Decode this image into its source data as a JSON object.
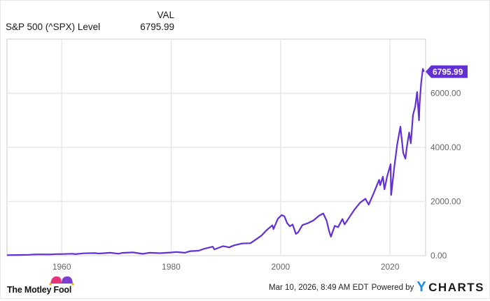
{
  "legend": {
    "column_header": "VAL",
    "series_name": "S&P 500 (^SPX) Level",
    "series_value": "6795.99"
  },
  "footer": {
    "brand": "The Motley Fool",
    "timestamp": "Mar 10, 2026, 8:49 AM EDT",
    "powered_by": "Powered by",
    "provider": "CHARTS",
    "provider_y": "Y"
  },
  "colors": {
    "line": "#6330d6",
    "grid": "#e8e8e8",
    "axis_text": "#666666",
    "label_bg": "#6330d6",
    "ycharts_blue": "#1b8ee8",
    "motley_pink": "#e8327c",
    "motley_purple": "#7b3fd0"
  },
  "chart_data": {
    "type": "line",
    "title": "S&P 500 (^SPX) Level",
    "xlabel": "",
    "ylabel": "",
    "xlim": [
      1950,
      2026.5
    ],
    "ylim": [
      0,
      8000
    ],
    "x_ticks": [
      1960,
      1980,
      2000,
      2020
    ],
    "x_tick_labels": [
      "1960",
      "1980",
      "2000",
      "2020"
    ],
    "y_ticks": [
      0,
      2000,
      4000,
      6000
    ],
    "y_tick_labels": [
      "0.00",
      "2000.00",
      "4000.00",
      "6000.00"
    ],
    "grid": true,
    "legend_position": "top-left",
    "last_value_label": "6795.99",
    "series": [
      {
        "name": "S&P 500 (^SPX) Level",
        "points": [
          [
            1950.0,
            17
          ],
          [
            1952,
            24
          ],
          [
            1954,
            30
          ],
          [
            1955,
            40
          ],
          [
            1956,
            46
          ],
          [
            1957.8,
            40
          ],
          [
            1959,
            58
          ],
          [
            1960,
            56
          ],
          [
            1961.9,
            70
          ],
          [
            1962.5,
            55
          ],
          [
            1964,
            84
          ],
          [
            1966,
            92
          ],
          [
            1966.8,
            78
          ],
          [
            1968.9,
            106
          ],
          [
            1970.4,
            70
          ],
          [
            1971,
            100
          ],
          [
            1973,
            118
          ],
          [
            1974.8,
            65
          ],
          [
            1976,
            105
          ],
          [
            1978,
            90
          ],
          [
            1980,
            115
          ],
          [
            1980.9,
            135
          ],
          [
            1982.5,
            105
          ],
          [
            1983.5,
            165
          ],
          [
            1985,
            180
          ],
          [
            1986,
            250
          ],
          [
            1987.6,
            330
          ],
          [
            1987.9,
            230
          ],
          [
            1989.5,
            350
          ],
          [
            1990.6,
            305
          ],
          [
            1991.5,
            380
          ],
          [
            1993,
            450
          ],
          [
            1994.5,
            460
          ],
          [
            1995.5,
            600
          ],
          [
            1996.5,
            740
          ],
          [
            1997.5,
            950
          ],
          [
            1998.5,
            1120
          ],
          [
            1998.7,
            980
          ],
          [
            1999.5,
            1360
          ],
          [
            2000.2,
            1500
          ],
          [
            2000.7,
            1450
          ],
          [
            2001.2,
            1200
          ],
          [
            2001.7,
            1080
          ],
          [
            2002.2,
            1150
          ],
          [
            2002.8,
            800
          ],
          [
            2003.2,
            860
          ],
          [
            2004,
            1130
          ],
          [
            2005,
            1200
          ],
          [
            2006,
            1300
          ],
          [
            2007,
            1470
          ],
          [
            2007.8,
            1560
          ],
          [
            2008.4,
            1300
          ],
          [
            2008.9,
            880
          ],
          [
            2009.2,
            700
          ],
          [
            2009.9,
            1100
          ],
          [
            2010.5,
            1050
          ],
          [
            2011.3,
            1350
          ],
          [
            2011.7,
            1150
          ],
          [
            2012.5,
            1400
          ],
          [
            2013.5,
            1700
          ],
          [
            2014.5,
            1950
          ],
          [
            2015.5,
            2100
          ],
          [
            2016.1,
            1880
          ],
          [
            2017,
            2300
          ],
          [
            2018,
            2800
          ],
          [
            2018.2,
            2600
          ],
          [
            2018.7,
            2920
          ],
          [
            2018.98,
            2450
          ],
          [
            2019.5,
            2950
          ],
          [
            2020.1,
            3380
          ],
          [
            2020.2,
            2240
          ],
          [
            2020.8,
            3300
          ],
          [
            2021.3,
            4100
          ],
          [
            2021.9,
            4770
          ],
          [
            2022.4,
            3800
          ],
          [
            2022.8,
            3580
          ],
          [
            2023.1,
            4050
          ],
          [
            2023.5,
            4550
          ],
          [
            2023.8,
            4150
          ],
          [
            2024.2,
            5200
          ],
          [
            2024.6,
            5500
          ],
          [
            2024.95,
            6050
          ],
          [
            2025.3,
            5000
          ],
          [
            2025.4,
            5600
          ],
          [
            2025.7,
            6400
          ],
          [
            2026.0,
            6900
          ],
          [
            2026.2,
            6796
          ]
        ]
      }
    ]
  }
}
